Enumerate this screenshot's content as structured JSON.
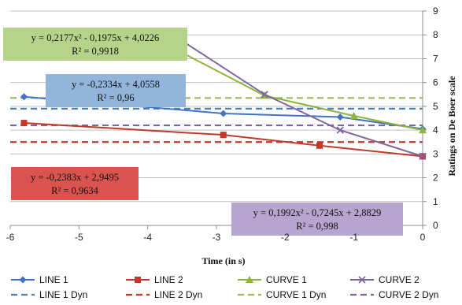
{
  "chart_data": {
    "type": "line",
    "xlabel": "Time (in  s)",
    "ylabel": "Ratings on De Boer  scale",
    "xlim": [
      -6,
      0
    ],
    "ylim": [
      0,
      9
    ],
    "x_ticks": [
      "-6",
      "-5",
      "-4",
      "-3",
      "-2",
      "-1",
      "0"
    ],
    "y_ticks": [
      "0",
      "1",
      "2",
      "3",
      "4",
      "5",
      "6",
      "7",
      "8",
      "9"
    ],
    "grid": "horizontal",
    "legend_position": "bottom",
    "series": [
      {
        "name": "LINE 1",
        "color": "#4472C4",
        "marker": "diamond",
        "style": "solid",
        "x": [
          -5.8,
          -2.9,
          -1.2,
          0
        ],
        "y": [
          5.4,
          4.7,
          4.55,
          4.05
        ]
      },
      {
        "name": "LINE 2",
        "color": "#C0392B",
        "marker": "square",
        "style": "solid",
        "x": [
          -5.8,
          -2.9,
          -1.5,
          0
        ],
        "y": [
          4.3,
          3.8,
          3.35,
          2.9
        ]
      },
      {
        "name": "CURVE  1",
        "color": "#8DB53C",
        "marker": "triangle",
        "style": "solid",
        "x": [
          -3.5,
          -2.3,
          -1.0,
          0
        ],
        "y": [
          7.25,
          5.45,
          4.6,
          4.0
        ]
      },
      {
        "name": "CURVE  2",
        "color": "#8064A2",
        "marker": "x",
        "style": "solid",
        "x": [
          -3.5,
          -2.3,
          -1.2,
          0
        ],
        "y": [
          7.75,
          5.5,
          4.0,
          2.9
        ]
      },
      {
        "name": "LINE 1 Dyn",
        "color": "#4F81BD",
        "style": "dashed",
        "y_const": 4.9
      },
      {
        "name": "LINE 2 Dyn",
        "color": "#C0392B",
        "style": "dashed",
        "y_const": 3.5
      },
      {
        "name": "CURVE  1 Dyn",
        "color": "#9BBB59",
        "style": "dashed",
        "y_const": 5.35
      },
      {
        "name": "CURVE  2 Dyn",
        "color": "#8064A2",
        "style": "dashed",
        "y_const": 4.2
      }
    ],
    "annotations": [
      {
        "line1": "y = 0,2177x² - 0,1975x + 4,0226",
        "line2": "R² = 0,9918",
        "fill": "#B5D48A",
        "for": "CURVE  1"
      },
      {
        "line1": "y = -0,2334x + 4,0558",
        "line2": "R² = 0,96",
        "fill": "#93B5DC",
        "for": "LINE 1"
      },
      {
        "line1": "y = -0,2383x + 2,9495",
        "line2": "R² = 0,9634",
        "fill": "#D9534F",
        "for": "LINE 2"
      },
      {
        "line1": "y = 0,1992x² - 0,7245x + 2,8829",
        "line2": "R² = 0,998",
        "fill": "#B7A4CF",
        "for": "CURVE  2"
      }
    ]
  }
}
